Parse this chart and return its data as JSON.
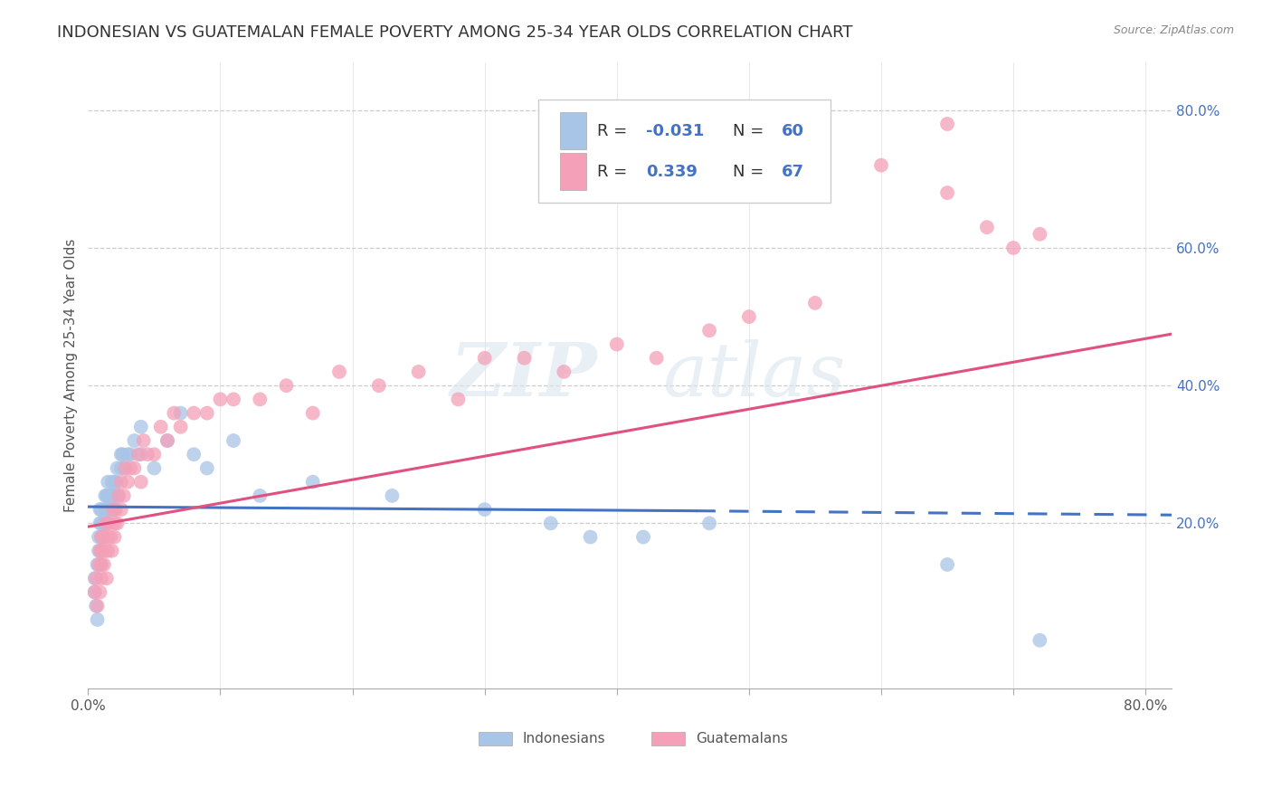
{
  "title": "INDONESIAN VS GUATEMALAN FEMALE POVERTY AMONG 25-34 YEAR OLDS CORRELATION CHART",
  "source": "Source: ZipAtlas.com",
  "ylabel": "Female Poverty Among 25-34 Year Olds",
  "xlim": [
    0.0,
    0.82
  ],
  "ylim": [
    -0.04,
    0.87
  ],
  "indonesian_color": "#a8c4e6",
  "guatemalan_color": "#f4a0b8",
  "indonesian_line_color": "#4472c4",
  "guatemalan_line_color": "#e05080",
  "indonesian_R": -0.031,
  "indonesian_N": 60,
  "guatemalan_R": 0.339,
  "guatemalan_N": 67,
  "watermark_zip": "ZIP",
  "watermark_atlas": "atlas",
  "background_color": "#ffffff",
  "grid_color": "#cccccc",
  "title_fontsize": 13,
  "label_fontsize": 11,
  "legend_fontsize": 13,
  "right_tick_color": "#4472c4",
  "indo_line_start_x": 0.0,
  "indo_line_start_y": 0.224,
  "indo_line_end_x": 0.46,
  "indo_line_end_y": 0.218,
  "indo_line_dash_start_x": 0.46,
  "indo_line_dash_start_y": 0.218,
  "indo_line_dash_end_x": 0.82,
  "indo_line_dash_end_y": 0.212,
  "guat_line_start_x": 0.0,
  "guat_line_start_y": 0.195,
  "guat_line_end_x": 0.82,
  "guat_line_end_y": 0.475,
  "indo_scatter_x": [
    0.005,
    0.005,
    0.006,
    0.007,
    0.007,
    0.008,
    0.008,
    0.009,
    0.009,
    0.01,
    0.01,
    0.01,
    0.01,
    0.01,
    0.012,
    0.012,
    0.013,
    0.013,
    0.014,
    0.014,
    0.015,
    0.015,
    0.015,
    0.016,
    0.016,
    0.017,
    0.018,
    0.018,
    0.019,
    0.02,
    0.02,
    0.02,
    0.021,
    0.022,
    0.023,
    0.025,
    0.025,
    0.026,
    0.028,
    0.03,
    0.032,
    0.035,
    0.04,
    0.04,
    0.05,
    0.06,
    0.07,
    0.08,
    0.09,
    0.11,
    0.13,
    0.17,
    0.23,
    0.3,
    0.35,
    0.38,
    0.42,
    0.47,
    0.65,
    0.72
  ],
  "indo_scatter_y": [
    0.12,
    0.1,
    0.08,
    0.06,
    0.14,
    0.16,
    0.18,
    0.2,
    0.22,
    0.14,
    0.16,
    0.18,
    0.2,
    0.22,
    0.18,
    0.2,
    0.22,
    0.24,
    0.2,
    0.24,
    0.22,
    0.24,
    0.26,
    0.22,
    0.24,
    0.24,
    0.22,
    0.26,
    0.24,
    0.22,
    0.24,
    0.26,
    0.26,
    0.28,
    0.24,
    0.28,
    0.3,
    0.3,
    0.28,
    0.3,
    0.3,
    0.32,
    0.3,
    0.34,
    0.28,
    0.32,
    0.36,
    0.3,
    0.28,
    0.32,
    0.24,
    0.26,
    0.24,
    0.22,
    0.2,
    0.18,
    0.18,
    0.2,
    0.14,
    0.03
  ],
  "guat_scatter_x": [
    0.005,
    0.006,
    0.007,
    0.008,
    0.009,
    0.009,
    0.01,
    0.01,
    0.01,
    0.01,
    0.012,
    0.012,
    0.013,
    0.014,
    0.014,
    0.015,
    0.015,
    0.016,
    0.017,
    0.018,
    0.019,
    0.02,
    0.02,
    0.021,
    0.022,
    0.023,
    0.025,
    0.025,
    0.027,
    0.028,
    0.03,
    0.032,
    0.035,
    0.038,
    0.04,
    0.042,
    0.045,
    0.05,
    0.055,
    0.06,
    0.065,
    0.07,
    0.08,
    0.09,
    0.1,
    0.11,
    0.13,
    0.15,
    0.17,
    0.19,
    0.22,
    0.25,
    0.28,
    0.3,
    0.33,
    0.36,
    0.4,
    0.43,
    0.47,
    0.5,
    0.55,
    0.6,
    0.65,
    0.65,
    0.68,
    0.7,
    0.72
  ],
  "guat_scatter_y": [
    0.1,
    0.12,
    0.08,
    0.14,
    0.1,
    0.16,
    0.12,
    0.14,
    0.16,
    0.18,
    0.14,
    0.18,
    0.16,
    0.12,
    0.2,
    0.16,
    0.18,
    0.2,
    0.18,
    0.16,
    0.22,
    0.18,
    0.2,
    0.22,
    0.2,
    0.24,
    0.22,
    0.26,
    0.24,
    0.28,
    0.26,
    0.28,
    0.28,
    0.3,
    0.26,
    0.32,
    0.3,
    0.3,
    0.34,
    0.32,
    0.36,
    0.34,
    0.36,
    0.36,
    0.38,
    0.38,
    0.38,
    0.4,
    0.36,
    0.42,
    0.4,
    0.42,
    0.38,
    0.44,
    0.44,
    0.42,
    0.46,
    0.44,
    0.48,
    0.5,
    0.52,
    0.72,
    0.68,
    0.78,
    0.63,
    0.6,
    0.62
  ]
}
